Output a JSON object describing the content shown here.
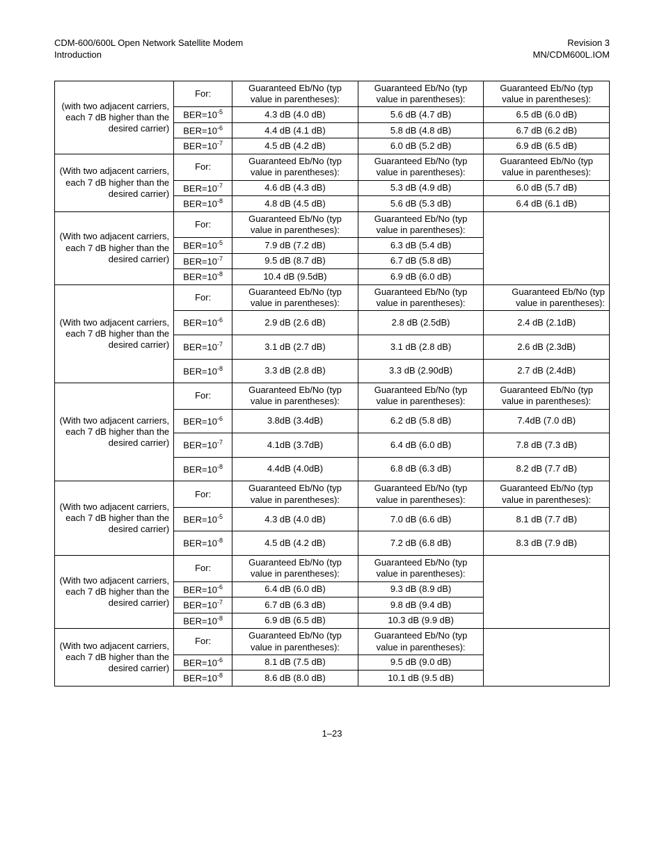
{
  "header": {
    "left1": "CDM-600/600L Open Network Satellite Modem",
    "left2": "Introduction",
    "right1": "Revision 3",
    "right2": "MN/CDM600L.IOM"
  },
  "footer": {
    "page": "1–23"
  },
  "strings": {
    "for": "For:",
    "g1": "Guaranteed Eb/No (typ value in parentheses):",
    "g2": "Guaranteed Eb/No (typ value in parentheses):"
  },
  "blocks": [
    {
      "desc": "(with two adjacent carriers, each 7 dB higher than the desired carrier)",
      "hdr_cols": 3,
      "hdr": [
        "Guaranteed Eb/No (typ value in parentheses):",
        "Guaranteed Eb/No (typ value in parentheses):",
        "Guaranteed Eb/No (typ value in parentheses):"
      ],
      "rows": [
        {
          "ber": "-5",
          "v": [
            "4.3 dB (4.0 dB)",
            "5.6 dB (4.7 dB)",
            "6.5 dB (6.0 dB)"
          ]
        },
        {
          "ber": "-6",
          "v": [
            "4.4 dB (4.1 dB)",
            "5.8 dB (4.8 dB)",
            "6.7 dB (6.2 dB)"
          ]
        },
        {
          "ber": "-7",
          "v": [
            "4.5 dB (4.2 dB)",
            "6.0 dB (5.2 dB)",
            "6.9 dB (6.5 dB)"
          ]
        }
      ]
    },
    {
      "desc": "(With two adjacent carriers, each 7 dB higher than the desired carrier)",
      "hdr_cols": 3,
      "hdr": [
        "Guaranteed Eb/No (typ value in parentheses):",
        "Guaranteed Eb/No (typ value in parentheses):",
        "Guaranteed Eb/No (typ value in parentheses):"
      ],
      "rows": [
        {
          "ber": "-7",
          "v": [
            "4.6 dB (4.3 dB)",
            "5.3 dB (4.9 dB)",
            "6.0 dB (5.7 dB)"
          ]
        },
        {
          "ber": "-8",
          "v": [
            "4.8 dB (4.5 dB)",
            "5.6 dB (5.3 dB)",
            "6.4 dB (6.1 dB)"
          ]
        }
      ]
    },
    {
      "desc": "(With two adjacent carriers, each 7 dB higher than the desired carrier)",
      "hdr_cols": 2,
      "hdr": [
        "Guaranteed Eb/No (typ value in parentheses):",
        "Guaranteed Eb/No (typ value in parentheses):"
      ],
      "rows": [
        {
          "ber": "-5",
          "v": [
            "7.9 dB (7.2 dB)",
            "6.3 dB (5.4 dB)"
          ]
        },
        {
          "ber": "-7",
          "v": [
            "9.5 dB (8.7 dB)",
            "6.7 dB (5.8 dB)"
          ]
        },
        {
          "ber": "-8",
          "v": [
            "10.4 dB (9.5dB)",
            "6.9 dB (6.0 dB)"
          ]
        }
      ]
    },
    {
      "desc": "(With two adjacent carriers, each 7 dB higher than the desired carrier)",
      "hdr_cols": 3,
      "hdr": [
        "Guaranteed Eb/No (typ value in parentheses):",
        "Guaranteed Eb/No (typ value in parentheses):",
        "Guaranteed Eb/No (typ value in parentheses):"
      ],
      "hdr_last": "Guaranteed Eb/No (typ value in parentheses):",
      "hdr_last_align": "right",
      "tall": true,
      "rows": [
        {
          "ber": "-6",
          "v": [
            "2.9 dB (2.6 dB)",
            "2.8 dB (2.5dB)",
            "2.4 dB (2.1dB)"
          ]
        },
        {
          "ber": "-7",
          "v": [
            "3.1 dB (2.7 dB)",
            "3.1 dB (2.8 dB)",
            "2.6 dB (2.3dB)"
          ]
        },
        {
          "ber": "-8",
          "v": [
            "3.3 dB (2.8 dB)",
            "3.3 dB (2.90dB)",
            "2.7 dB (2.4dB)"
          ]
        }
      ]
    },
    {
      "desc": "(With two adjacent carriers, each 7 dB higher than the desired carrier)",
      "hdr_cols": 3,
      "hdr": [
        "Guaranteed Eb/No (typ value in parentheses):",
        "Guaranteed Eb/No (typ value in parentheses):",
        "Guaranteed Eb/No (typ value in parentheses):"
      ],
      "tall": true,
      "rows": [
        {
          "ber": "-6",
          "v": [
            "3.8dB (3.4dB)",
            "6.2 dB (5.8 dB)",
            "7.4dB (7.0 dB)"
          ]
        },
        {
          "ber": "-7",
          "v": [
            "4.1dB (3.7dB)",
            "6.4 dB (6.0 dB)",
            "7.8 dB (7.3 dB)"
          ]
        },
        {
          "ber": "-8",
          "v": [
            "4.4dB (4.0dB)",
            "6.8 dB (6.3 dB)",
            "8.2 dB (7.7 dB)"
          ]
        }
      ]
    },
    {
      "desc": "(With two adjacent carriers, each 7 dB higher than the desired carrier)",
      "hdr_cols": 3,
      "hdr": [
        "Guaranteed Eb/No (typ value in parentheses):",
        "Guaranteed Eb/No (typ value in parentheses):",
        "Guaranteed Eb/No (typ value in parentheses):"
      ],
      "tall": true,
      "rows": [
        {
          "ber": "-5",
          "v": [
            "4.3 dB (4.0 dB)",
            "7.0 dB (6.6 dB)",
            "8.1 dB (7.7 dB)"
          ]
        },
        {
          "ber": "-8",
          "v": [
            "4.5 dB (4.2 dB)",
            "7.2 dB (6.8 dB)",
            "8.3 dB (7.9 dB)"
          ]
        }
      ]
    },
    {
      "desc": "(With two adjacent carriers, each 7 dB higher than the desired carrier)",
      "hdr_cols": 2,
      "hdr": [
        "Guaranteed Eb/No (typ value in parentheses):",
        "Guaranteed Eb/No (typ value in parentheses):"
      ],
      "rows": [
        {
          "ber": "-6",
          "v": [
            "6.4 dB (6.0 dB)",
            "9.3 dB (8.9 dB)"
          ]
        },
        {
          "ber": "-7",
          "v": [
            "6.7 dB (6.3 dB)",
            "9.8 dB (9.4 dB)"
          ]
        },
        {
          "ber": "-8",
          "v": [
            "6.9 dB (6.5 dB)",
            "10.3 dB (9.9 dB)"
          ]
        }
      ]
    },
    {
      "desc": "(With two adjacent carriers, each 7 dB higher than the desired carrier)",
      "hdr_cols": 2,
      "hdr": [
        "Guaranteed Eb/No (typ value in parentheses):",
        "Guaranteed Eb/No (typ value in parentheses):"
      ],
      "rows": [
        {
          "ber": "-6",
          "v": [
            "8.1 dB (7.5 dB)",
            "9.5 dB (9.0 dB)"
          ]
        },
        {
          "ber": "-8",
          "v": [
            "8.6 dB (8.0 dB)",
            "10.1 dB (9.5 dB)"
          ]
        }
      ]
    }
  ]
}
